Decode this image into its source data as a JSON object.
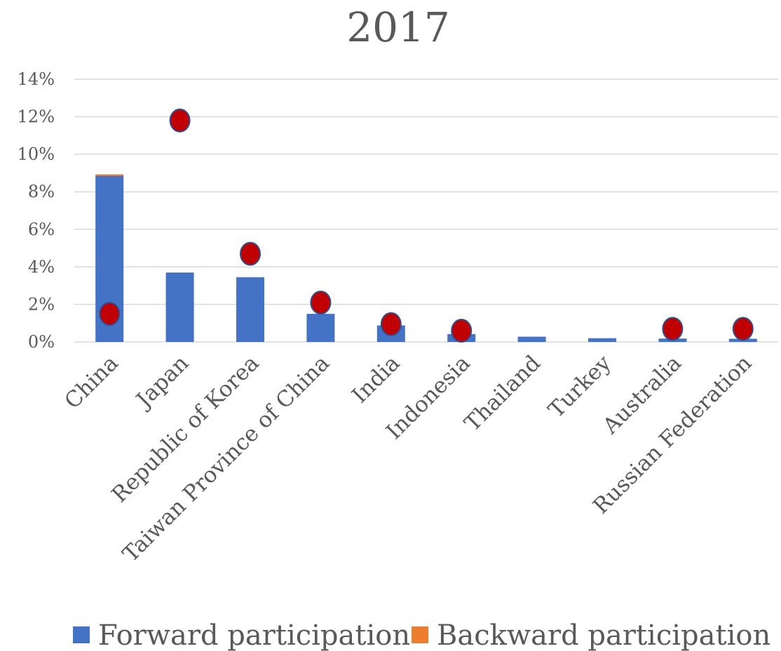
{
  "chart_data": {
    "type": "bar",
    "title": "2017",
    "categories": [
      "China",
      "Japan",
      "Republic of Korea",
      "Taiwan Province of China",
      "India",
      "Indonesia",
      "Thailand",
      "Turkey",
      "Australia",
      "Russian Federation"
    ],
    "stacked": true,
    "series": [
      {
        "name": "Forward participation",
        "kind": "bar",
        "color": "#4472c4",
        "values": [
          8.85,
          3.7,
          3.45,
          1.5,
          0.88,
          0.42,
          0.28,
          0.2,
          0.18,
          0.17
        ]
      },
      {
        "name": "Backward participation",
        "kind": "bar",
        "color": "#ed7d31",
        "values": [
          0.08,
          0,
          0,
          0,
          0,
          0,
          0,
          0,
          0,
          0
        ]
      },
      {
        "kind": "marker",
        "color": "#c00000",
        "values": [
          1.5,
          11.8,
          4.7,
          2.1,
          0.95,
          0.6,
          null,
          null,
          0.7,
          0.7
        ]
      }
    ],
    "yticks": [
      "0%",
      "2%",
      "4%",
      "6%",
      "8%",
      "10%",
      "12%",
      "14%"
    ],
    "ylim": [
      0,
      14
    ],
    "grid": true,
    "legend_position": "bottom",
    "xlabel": "",
    "ylabel": ""
  }
}
